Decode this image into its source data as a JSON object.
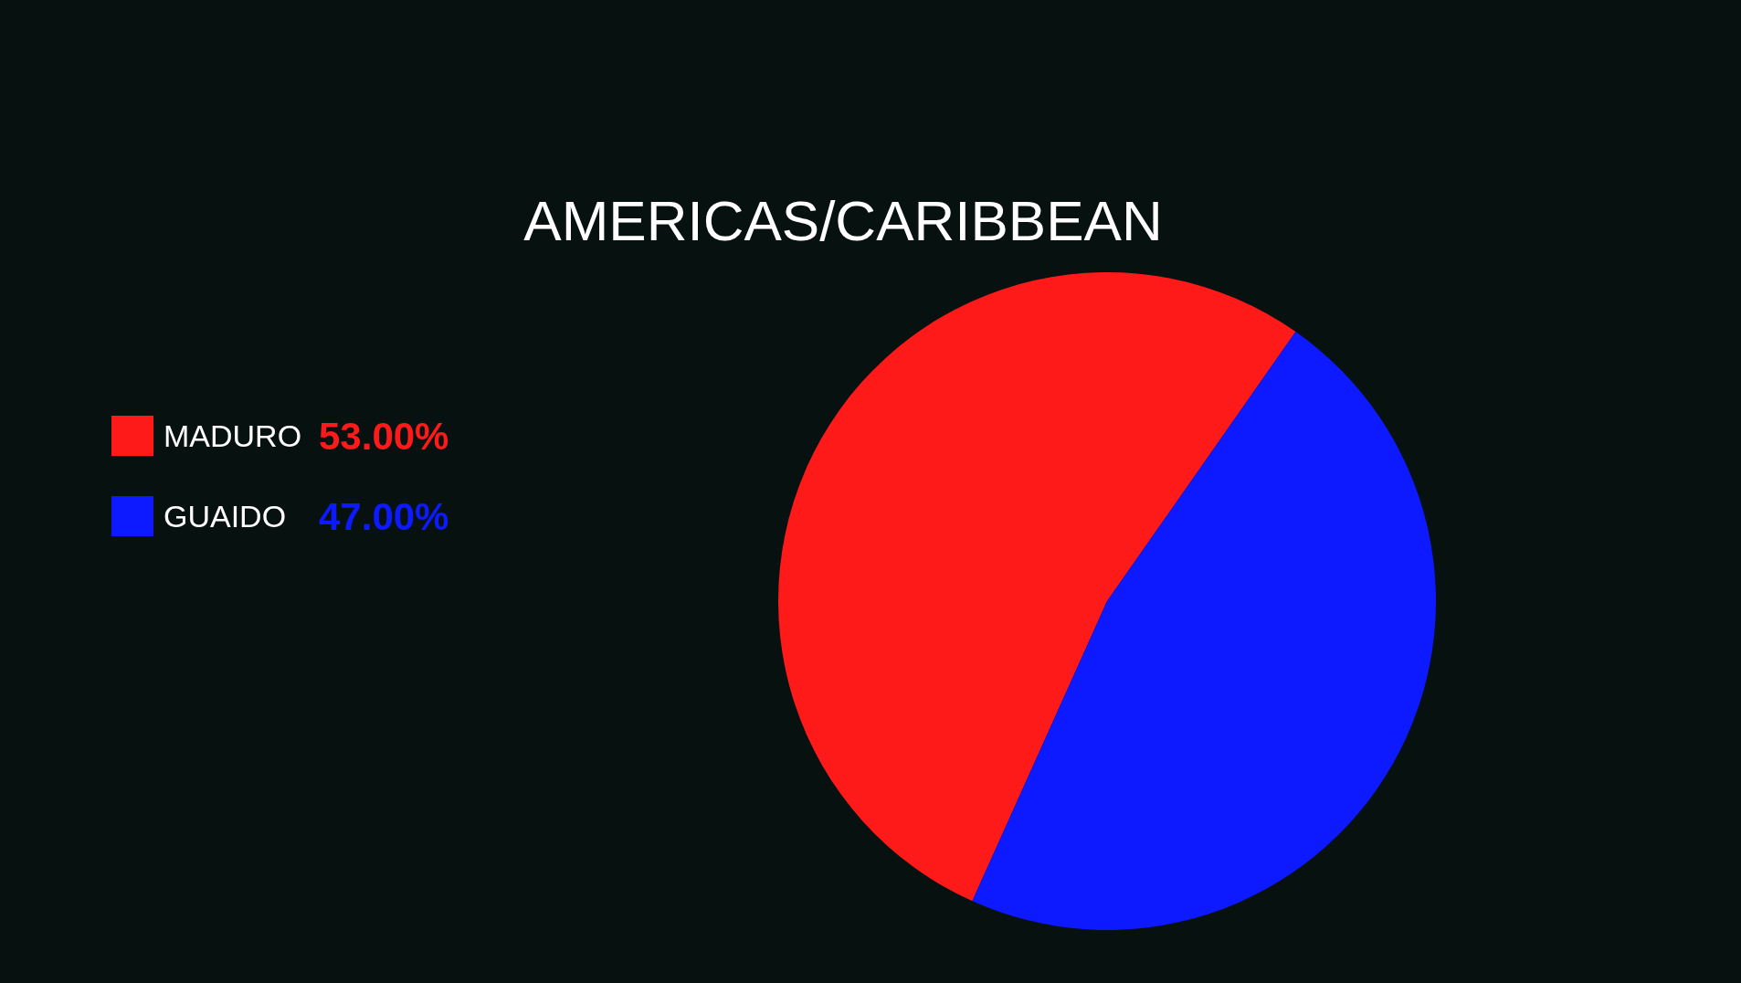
{
  "chart_data": {
    "type": "pie",
    "title": "AMERICAS/CARIBBEAN",
    "categories": [
      "MADURO",
      "GUAIDO"
    ],
    "values": [
      53,
      47
    ],
    "colors": [
      "#ff1a1a",
      "#0d1aff"
    ],
    "value_labels": [
      "53.00%",
      "47.00%"
    ],
    "legend": "left"
  }
}
